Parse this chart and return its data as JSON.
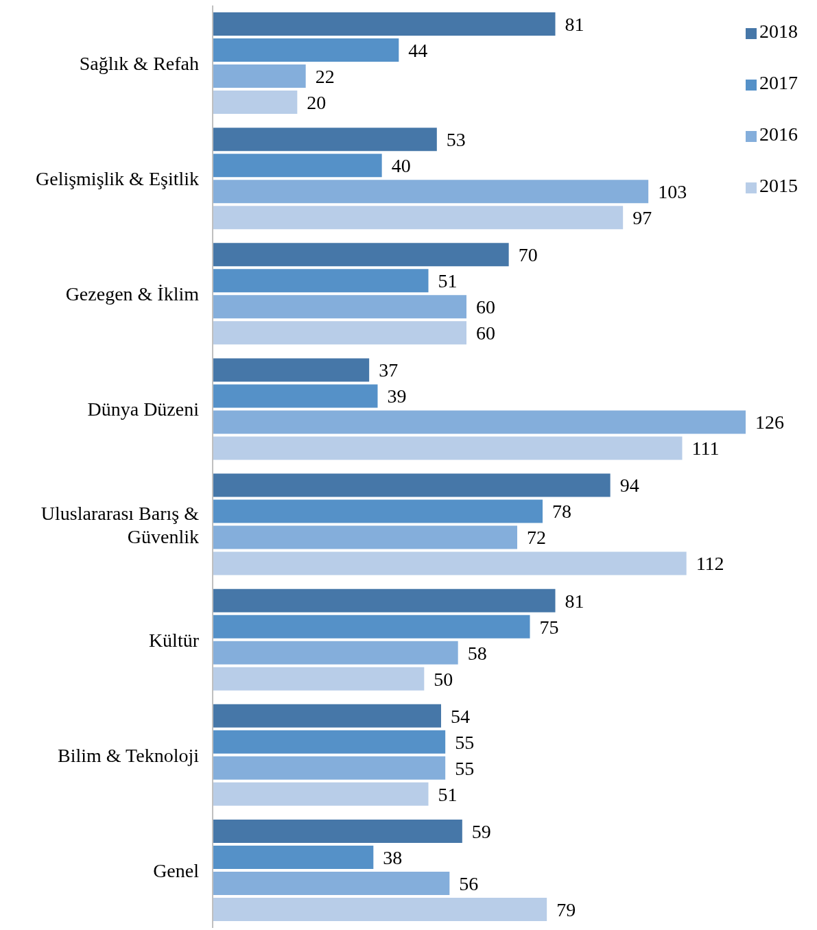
{
  "chart_data": {
    "type": "bar",
    "orientation": "horizontal",
    "categories": [
      "Sağlık & Refah",
      "Gelişmişlik & Eşitlik",
      "Gezegen & İklim",
      "Dünya Düzeni",
      "Uluslararası Barış & Güvenlik",
      "Kültür",
      "Bilim & Teknoloji",
      "Genel"
    ],
    "series": [
      {
        "name": "2018",
        "color": "#4677a8",
        "values": [
          81,
          53,
          70,
          37,
          94,
          81,
          54,
          59
        ]
      },
      {
        "name": "2017",
        "color": "#5591c8",
        "values": [
          44,
          40,
          51,
          39,
          78,
          75,
          55,
          38
        ]
      },
      {
        "name": "2016",
        "color": "#84aedb",
        "values": [
          22,
          103,
          60,
          126,
          72,
          58,
          55,
          56
        ]
      },
      {
        "name": "2015",
        "color": "#b8cde8",
        "values": [
          20,
          97,
          60,
          111,
          112,
          50,
          51,
          79
        ]
      }
    ],
    "data_labels": true,
    "legend": "top right"
  }
}
